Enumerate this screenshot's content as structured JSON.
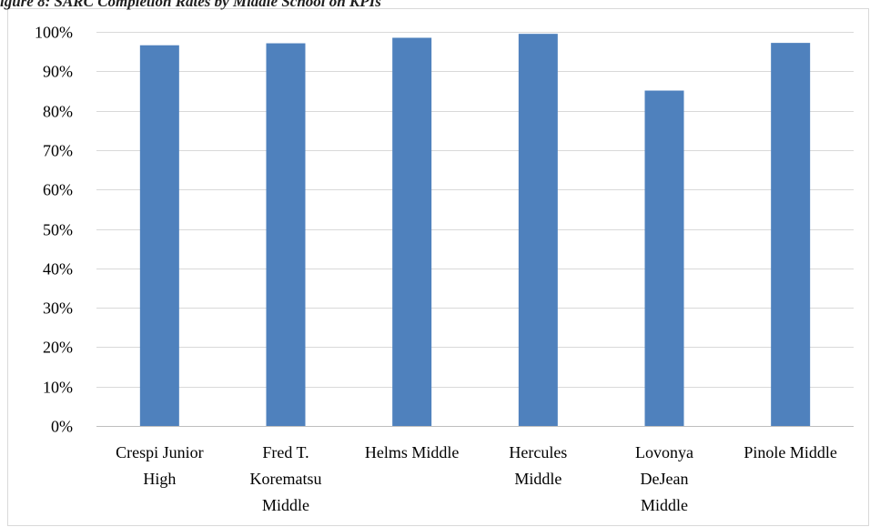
{
  "chart_data": {
    "type": "bar",
    "title": "igure 8: SARC Completion Rates by Middle School on KPIs",
    "xlabel": "",
    "ylabel": "",
    "categories": [
      [
        "Crespi Junior",
        "High"
      ],
      [
        "Fred T.",
        "Korematsu",
        "Middle"
      ],
      [
        "Helms Middle"
      ],
      [
        "Hercules",
        "Middle"
      ],
      [
        "Lovonya",
        "DeJean",
        "Middle"
      ],
      [
        "Pinole Middle"
      ]
    ],
    "series": [
      {
        "values": [
          0.966,
          0.971,
          0.985,
          0.995,
          0.851,
          0.972
        ]
      }
    ],
    "ylim": [
      0,
      1
    ],
    "yticks": [
      "0%",
      "10%",
      "20%",
      "30%",
      "40%",
      "50%",
      "60%",
      "70%",
      "80%",
      "90%",
      "100%"
    ],
    "grid": true,
    "legend": "none",
    "colors": {
      "bar": "#4f81bd",
      "grid": "#d9d9d9",
      "axis": "#bfbfbf"
    }
  }
}
